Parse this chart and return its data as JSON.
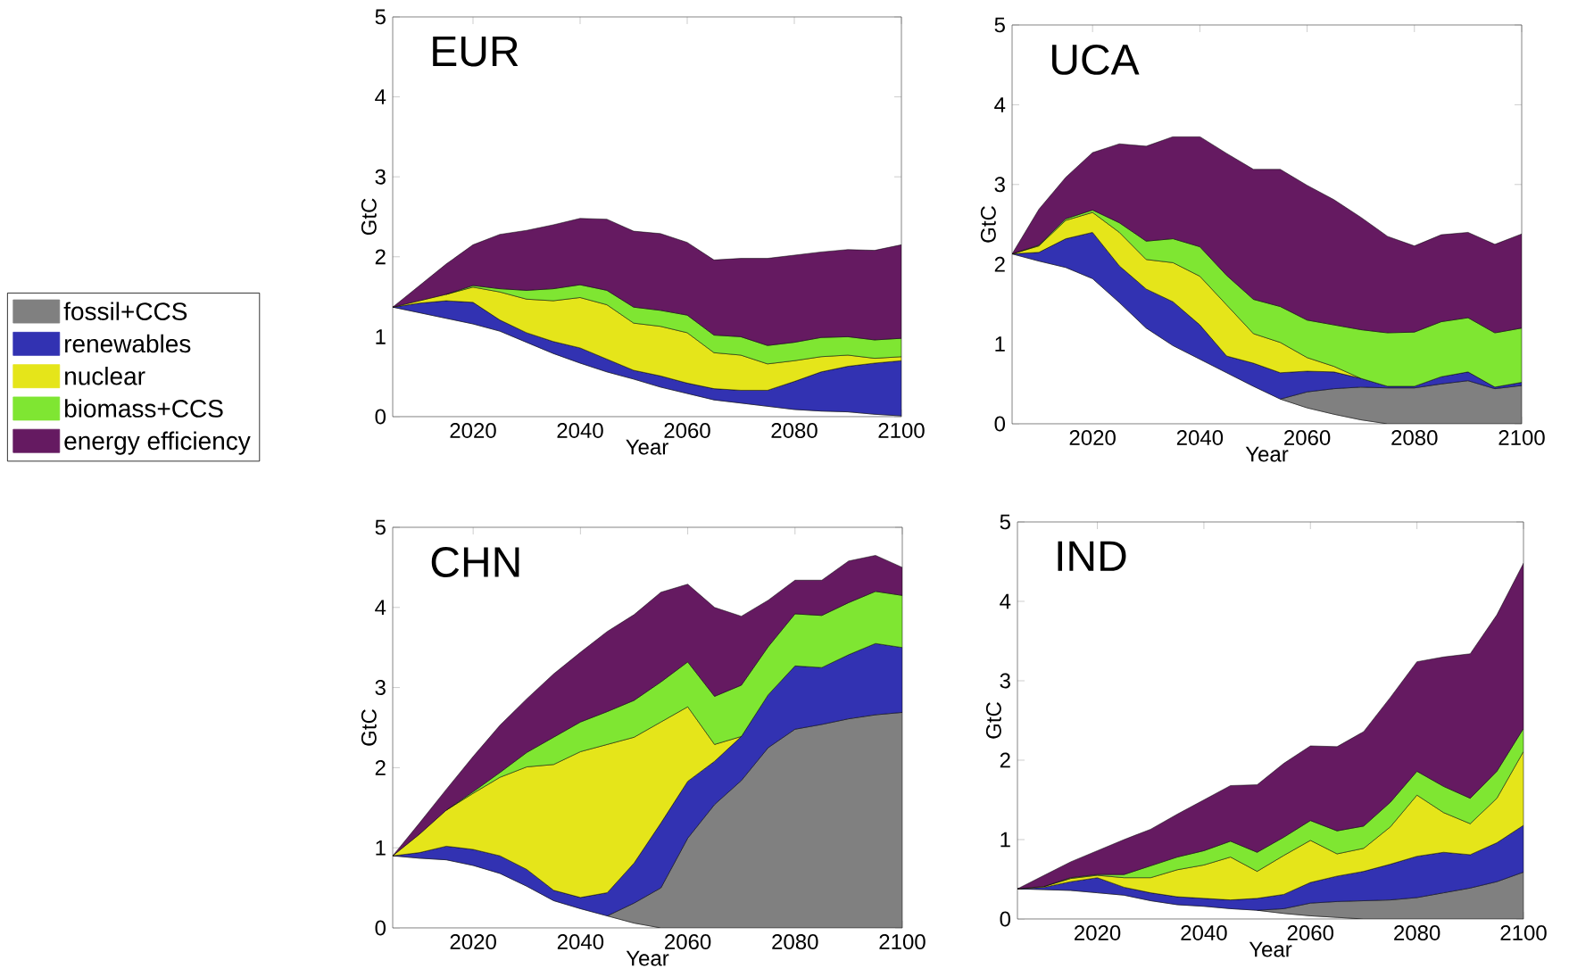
{
  "chart_data": [
    {
      "type": "area",
      "stacked": true,
      "title": "EUR",
      "xlabel": "Year",
      "ylabel": "GtC",
      "x": [
        2005,
        2010,
        2015,
        2020,
        2025,
        2030,
        2035,
        2040,
        2045,
        2050,
        2055,
        2060,
        2065,
        2070,
        2075,
        2080,
        2085,
        2090,
        2095,
        2100
      ],
      "xlim": [
        2005,
        2100
      ],
      "ylim": [
        0,
        5
      ],
      "xticks": [
        2020,
        2040,
        2060,
        2080,
        2100
      ],
      "yticks": [
        0,
        1,
        2,
        3,
        4,
        5
      ],
      "series": [
        {
          "color": "#ffffff",
          "values": [
            1.37,
            1.3,
            1.23,
            1.16,
            1.07,
            0.93,
            0.79,
            0.67,
            0.56,
            0.47,
            0.37,
            0.29,
            0.21,
            0.17,
            0.13,
            0.09,
            0.07,
            0.06,
            0.03,
            0.01
          ]
        },
        {
          "name": "renewables",
          "color": "#3232b2",
          "values": [
            0,
            0.12,
            0.22,
            0.27,
            0.14,
            0.12,
            0.15,
            0.19,
            0.16,
            0.11,
            0.14,
            0.13,
            0.14,
            0.16,
            0.2,
            0.35,
            0.49,
            0.57,
            0.64,
            0.69
          ]
        },
        {
          "name": "nuclear",
          "color": "#e5e51a",
          "values": [
            0,
            0.03,
            0.08,
            0.19,
            0.35,
            0.42,
            0.51,
            0.63,
            0.68,
            0.59,
            0.62,
            0.63,
            0.45,
            0.44,
            0.33,
            0.26,
            0.19,
            0.14,
            0.06,
            0.05
          ]
        },
        {
          "name": "biomass+CCS",
          "color": "#7fe632",
          "values": [
            null,
            null,
            0,
            0.02,
            0.04,
            0.11,
            0.15,
            0.16,
            0.18,
            0.2,
            0.2,
            0.22,
            0.22,
            0.23,
            0.23,
            0.23,
            0.24,
            0.23,
            0.23,
            0.23
          ]
        },
        {
          "name": "energy efficiency",
          "color": "#651a61",
          "values": [
            0,
            0.19,
            0.38,
            0.51,
            0.68,
            0.75,
            0.8,
            0.83,
            0.89,
            0.95,
            0.96,
            0.91,
            0.94,
            0.98,
            1.09,
            1.09,
            1.07,
            1.09,
            1.12,
            1.17
          ]
        }
      ]
    },
    {
      "type": "area",
      "stacked": true,
      "title": "UCA",
      "xlabel": "Year",
      "ylabel": "GtC",
      "x": [
        2005,
        2010,
        2015,
        2020,
        2025,
        2030,
        2035,
        2040,
        2045,
        2050,
        2055,
        2060,
        2065,
        2070,
        2075,
        2080,
        2085,
        2090,
        2095,
        2100
      ],
      "xlim": [
        2005,
        2100
      ],
      "ylim": [
        0,
        5
      ],
      "xticks": [
        2020,
        2040,
        2060,
        2080,
        2100
      ],
      "yticks": [
        0,
        1,
        2,
        3,
        4,
        5
      ],
      "series": [
        {
          "color": "#ffffff",
          "values": [
            2.13,
            2.04,
            1.96,
            1.82,
            1.52,
            1.2,
            0.98,
            0.81,
            0.64,
            0.47,
            0.31,
            0.2,
            0.12,
            0.05,
            0,
            null,
            null,
            null,
            null,
            null
          ]
        },
        {
          "name": "fossil+CCS",
          "color": "#808080",
          "values": [
            null,
            null,
            null,
            null,
            null,
            null,
            null,
            null,
            null,
            null,
            0,
            0.2,
            0.32,
            0.41,
            0.45,
            0.45,
            0.5,
            0.54,
            0.44,
            0.48
          ]
        },
        {
          "name": "renewables",
          "color": "#3232b2",
          "values": [
            0,
            0.11,
            0.36,
            0.58,
            0.46,
            0.49,
            0.55,
            0.43,
            0.21,
            0.29,
            0.33,
            0.26,
            0.21,
            0.11,
            0.02,
            0.02,
            0.09,
            0.11,
            0.02,
            0.04
          ]
        },
        {
          "name": "nuclear",
          "color": "#e5e51a",
          "values": [
            0,
            0.08,
            0.23,
            0.25,
            0.42,
            0.37,
            0.49,
            0.61,
            0.64,
            0.37,
            0.38,
            0.17,
            0.07,
            0,
            null,
            null,
            null,
            null,
            null,
            null
          ]
        },
        {
          "name": "biomass+CCS",
          "color": "#7fe632",
          "values": [
            0,
            0.01,
            0.02,
            0.03,
            0.12,
            0.23,
            0.3,
            0.37,
            0.37,
            0.43,
            0.45,
            0.47,
            0.52,
            0.61,
            0.67,
            0.68,
            0.69,
            0.68,
            0.68,
            0.68
          ]
        },
        {
          "name": "energy efficiency",
          "color": "#651a61",
          "values": [
            0,
            0.45,
            0.52,
            0.72,
            0.99,
            1.19,
            1.28,
            1.38,
            1.53,
            1.63,
            1.72,
            1.69,
            1.57,
            1.41,
            1.21,
            1.08,
            1.09,
            1.07,
            1.11,
            1.18
          ]
        }
      ]
    },
    {
      "type": "area",
      "stacked": true,
      "title": "CHN",
      "xlabel": "Year",
      "ylabel": "GtC",
      "legend": "left",
      "x": [
        2005,
        2010,
        2015,
        2020,
        2025,
        2030,
        2035,
        2040,
        2045,
        2050,
        2055,
        2060,
        2065,
        2070,
        2075,
        2080,
        2085,
        2090,
        2095,
        2100
      ],
      "xlim": [
        2005,
        2100
      ],
      "ylim": [
        0,
        5
      ],
      "xticks": [
        2020,
        2040,
        2060,
        2080,
        2100
      ],
      "yticks": [
        0,
        1,
        2,
        3,
        4,
        5
      ],
      "series": [
        {
          "color": "#ffffff",
          "values": [
            0.9,
            0.87,
            0.85,
            0.78,
            0.68,
            0.52,
            0.34,
            0.24,
            0.15,
            0.06,
            0,
            null,
            null,
            null,
            null,
            null,
            null,
            null,
            null,
            null
          ]
        },
        {
          "name": "fossil+CCS",
          "color": "#808080",
          "values": [
            null,
            null,
            null,
            null,
            null,
            null,
            null,
            null,
            0,
            0.25,
            0.5,
            1.12,
            1.54,
            1.84,
            2.25,
            2.48,
            2.54,
            2.61,
            2.66,
            2.69
          ]
        },
        {
          "name": "renewables",
          "color": "#3232b2",
          "values": [
            0,
            0.07,
            0.17,
            0.2,
            0.22,
            0.21,
            0.13,
            0.14,
            0.29,
            0.5,
            0.81,
            0.71,
            0.54,
            0.55,
            0.66,
            0.79,
            0.71,
            0.8,
            0.89,
            0.81
          ]
        },
        {
          "name": "nuclear",
          "color": "#e5e51a",
          "values": [
            0,
            0.23,
            0.45,
            0.7,
            0.98,
            1.28,
            1.57,
            1.82,
            1.85,
            1.57,
            1.26,
            0.93,
            0.21,
            0,
            null,
            null,
            null,
            null,
            null,
            null
          ]
        },
        {
          "name": "biomass+CCS",
          "color": "#7fe632",
          "values": [
            null,
            null,
            0,
            0.02,
            0.06,
            0.18,
            0.34,
            0.37,
            0.41,
            0.46,
            0.5,
            0.56,
            0.6,
            0.64,
            0.6,
            0.65,
            0.65,
            0.65,
            0.65,
            0.65
          ]
        },
        {
          "name": "energy efficiency",
          "color": "#651a61",
          "values": [
            0,
            0.14,
            0.26,
            0.44,
            0.59,
            0.67,
            0.79,
            0.87,
            1.0,
            1.07,
            1.12,
            0.97,
            1.11,
            0.86,
            0.58,
            0.42,
            0.44,
            0.52,
            0.45,
            0.35
          ]
        }
      ]
    },
    {
      "type": "area",
      "stacked": true,
      "title": "IND",
      "xlabel": "Year",
      "ylabel": "GtC",
      "x": [
        2005,
        2010,
        2015,
        2020,
        2025,
        2030,
        2035,
        2040,
        2045,
        2050,
        2055,
        2060,
        2065,
        2070,
        2075,
        2080,
        2085,
        2090,
        2095,
        2100
      ],
      "xlim": [
        2005,
        2100
      ],
      "ylim": [
        0,
        5
      ],
      "xticks": [
        2020,
        2040,
        2060,
        2080,
        2100
      ],
      "yticks": [
        0,
        1,
        2,
        3,
        4,
        5
      ],
      "series": [
        {
          "color": "#ffffff",
          "values": [
            0.38,
            0.37,
            0.36,
            0.33,
            0.3,
            0.23,
            0.18,
            0.16,
            0.13,
            0.11,
            0.07,
            0.04,
            0.02,
            0,
            null,
            null,
            null,
            null,
            null,
            null
          ]
        },
        {
          "name": "fossil+CCS",
          "color": "#808080",
          "values": [
            null,
            null,
            null,
            null,
            null,
            null,
            null,
            null,
            null,
            0,
            0.06,
            0.16,
            0.2,
            0.23,
            0.24,
            0.27,
            0.33,
            0.39,
            0.47,
            0.59
          ]
        },
        {
          "name": "renewables",
          "color": "#3232b2",
          "values": [
            0,
            0.03,
            0.11,
            0.19,
            0.1,
            0.1,
            0.1,
            0.1,
            0.11,
            0.15,
            0.18,
            0.26,
            0.32,
            0.37,
            0.45,
            0.52,
            0.51,
            0.42,
            0.49,
            0.59
          ]
        },
        {
          "name": "nuclear",
          "color": "#e5e51a",
          "values": [
            0,
            0.01,
            0.04,
            0.03,
            0.12,
            0.19,
            0.34,
            0.42,
            0.54,
            0.34,
            0.49,
            0.53,
            0.28,
            0.29,
            0.47,
            0.77,
            0.5,
            0.39,
            0.56,
            0.93
          ]
        },
        {
          "name": "biomass+CCS",
          "color": "#7fe632",
          "values": [
            null,
            0,
            0.01,
            0.01,
            0.04,
            0.15,
            0.16,
            0.18,
            0.2,
            0.24,
            0.23,
            0.25,
            0.29,
            0.28,
            0.31,
            0.3,
            0.33,
            0.32,
            0.34,
            0.29
          ]
        },
        {
          "name": "energy efficiency",
          "color": "#651a61",
          "values": [
            0,
            0.14,
            0.2,
            0.3,
            0.44,
            0.46,
            0.54,
            0.64,
            0.7,
            0.85,
            0.93,
            0.94,
            1.06,
            1.19,
            1.32,
            1.38,
            1.63,
            1.82,
            1.97,
            2.08
          ]
        }
      ]
    }
  ]
}
